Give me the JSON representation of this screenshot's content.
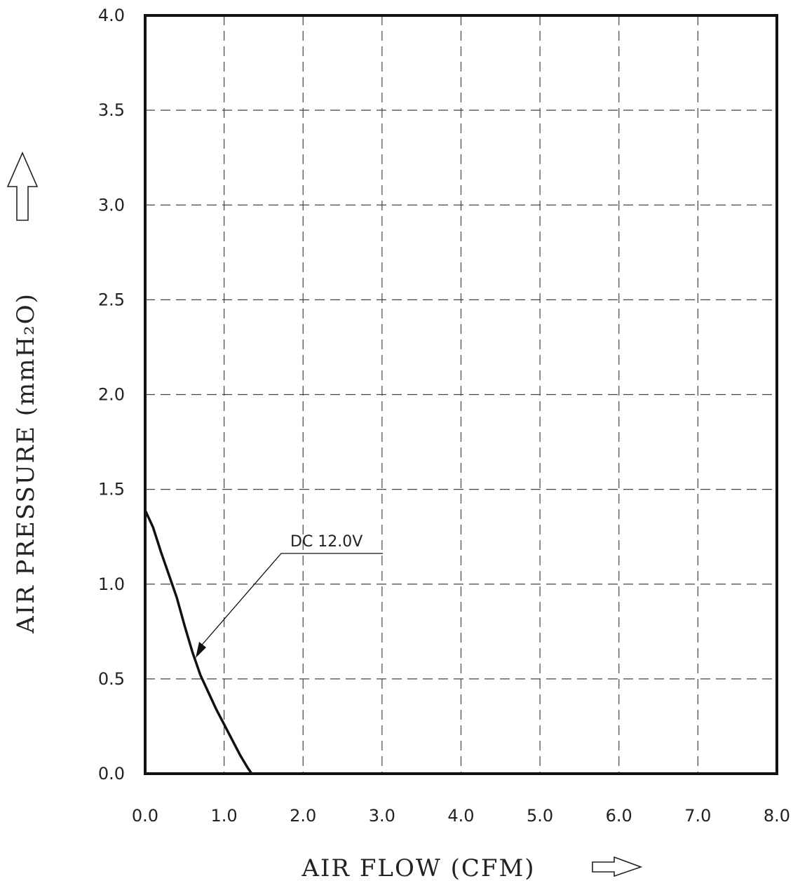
{
  "chart_data": {
    "type": "line",
    "xlabel": "AIR FLOW (CFM)",
    "ylabel": "AIR PRESSURE (mmH₂O)",
    "xlim": [
      0,
      8
    ],
    "ylim": [
      0,
      4
    ],
    "x_ticks": [
      "0.0",
      "1.0",
      "2.0",
      "3.0",
      "4.0",
      "5.0",
      "6.0",
      "7.0",
      "8.0"
    ],
    "y_ticks": [
      "0.0",
      "0.5",
      "1.0",
      "1.5",
      "2.0",
      "2.5",
      "3.0",
      "3.5",
      "4.0"
    ],
    "grid": true,
    "series": [
      {
        "name": "DC 12.0V",
        "color": "#111111",
        "x": [
          0.0,
          0.1,
          0.2,
          0.3,
          0.4,
          0.5,
          0.6,
          0.7,
          0.8,
          0.9,
          1.0,
          1.1,
          1.2,
          1.3,
          1.35
        ],
        "y": [
          1.39,
          1.3,
          1.17,
          1.05,
          0.93,
          0.78,
          0.64,
          0.52,
          0.43,
          0.34,
          0.26,
          0.18,
          0.1,
          0.03,
          0.0
        ]
      }
    ],
    "annotations": [
      {
        "text": "DC 12.0V",
        "points_to": [
          0.65,
          0.62
        ]
      }
    ]
  }
}
